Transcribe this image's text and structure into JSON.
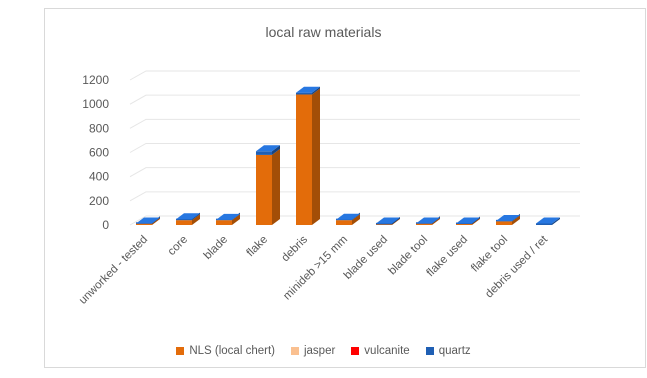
{
  "chart_data": {
    "type": "bar",
    "title": "local raw materials",
    "xlabel": "",
    "ylabel": "",
    "ylim": [
      0,
      1200
    ],
    "yticks": [
      "0",
      "200",
      "400",
      "600",
      "800",
      "1000",
      "1200"
    ],
    "categories": [
      "unworked - tested",
      "core",
      "blade",
      "flake",
      "debris",
      "minideb >15 mm",
      "blade used",
      "blade tool",
      "flake used",
      "flake tool",
      "debris used / ret"
    ],
    "series": [
      {
        "name": "NLS (local chert)",
        "color": "#e36c0a",
        "values": [
          10,
          40,
          40,
          580,
          1080,
          40,
          5,
          10,
          8,
          30,
          0
        ]
      },
      {
        "name": "jasper",
        "color": "#fac090",
        "values": [
          0,
          0,
          0,
          0,
          0,
          0,
          0,
          0,
          0,
          0,
          0
        ]
      },
      {
        "name": "vulcanite",
        "color": "#ff0000",
        "values": [
          0,
          0,
          0,
          0,
          0,
          0,
          0,
          0,
          0,
          0,
          0
        ]
      },
      {
        "name": "quartz",
        "color": "#1f5fb4",
        "values": [
          2,
          8,
          2,
          30,
          15,
          3,
          2,
          2,
          2,
          3,
          2
        ]
      }
    ],
    "stacked": true,
    "style_3d": true,
    "grid": true,
    "legend_position": "bottom"
  }
}
